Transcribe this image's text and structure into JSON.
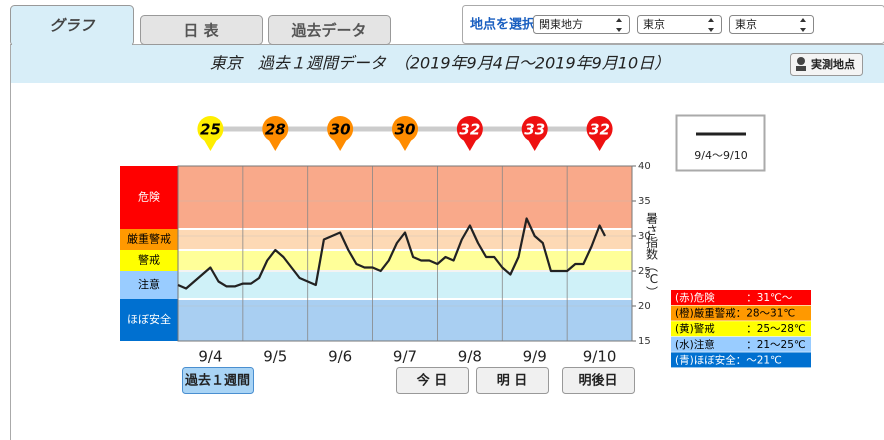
{
  "tabs": [
    "グラフ",
    "日 表",
    "過去データ"
  ],
  "selector": {
    "label": "地点を選択",
    "options": [
      "関東地方",
      "東京",
      "東京"
    ]
  },
  "header": {
    "title": "東京　過去１週間データ　（2019年9月4日～2019年9月10日）",
    "button": "実測地点"
  },
  "chart_data": {
    "type": "line",
    "y_label": "暑さ指数（℃）",
    "ylim": [
      15,
      40
    ],
    "yticks": [
      15,
      20,
      25,
      30,
      35,
      40
    ],
    "xlim": [
      0,
      168
    ],
    "categories": [
      "9/4",
      "9/5",
      "9/6",
      "9/7",
      "9/8",
      "9/9",
      "9/10"
    ],
    "series": [
      {
        "name": "9/4～9/10",
        "color": "#222222",
        "x": [
          0,
          3,
          6,
          9,
          12,
          15,
          18,
          21,
          24,
          27,
          30,
          33,
          36,
          39,
          42,
          45,
          48,
          51,
          54,
          57,
          60,
          63,
          66,
          69,
          72,
          75,
          78,
          81,
          84,
          87,
          90,
          93,
          96,
          99,
          102,
          105,
          108,
          111,
          114,
          117,
          120,
          123,
          126,
          129,
          132,
          135,
          138,
          141,
          144,
          147,
          150,
          153,
          156,
          158
        ],
        "values": [
          23.0,
          22.5,
          23.5,
          24.5,
          25.5,
          23.5,
          22.8,
          22.8,
          23.2,
          23.2,
          24.0,
          26.5,
          28.0,
          27.0,
          25.5,
          24.0,
          23.5,
          23.0,
          29.5,
          30.0,
          30.5,
          28.0,
          26.0,
          25.5,
          25.5,
          25.0,
          26.5,
          29.0,
          30.5,
          27.0,
          26.5,
          26.5,
          26.0,
          27.0,
          26.5,
          29.5,
          31.5,
          29.0,
          27.0,
          27.0,
          25.5,
          24.5,
          27.0,
          32.5,
          30.0,
          29.0,
          25.0,
          25.0,
          25.0,
          26.0,
          26.0,
          28.5,
          31.5,
          30.0
        ]
      }
    ],
    "daily_max": {
      "values": [
        25,
        28,
        30,
        30,
        32,
        33,
        32
      ],
      "colors": [
        "#ffee00",
        "#ff8c00",
        "#ff8c00",
        "#ff8c00",
        "#ee1111",
        "#ee1111",
        "#ee1111"
      ],
      "text_colors": [
        "#000000",
        "#000000",
        "#000000",
        "#000000",
        "#ffffff",
        "#ffffff",
        "#ffffff"
      ]
    },
    "zones": [
      {
        "name": "危険",
        "legend": "(赤)危険　　　：31℃～",
        "from": 31,
        "color": "#ff0000",
        "band": "#f9a98a",
        "text_color": "#ffffff"
      },
      {
        "name": "厳重警戒",
        "legend": "(橙)厳重警戒：28～31℃",
        "from": 28,
        "color": "#ff9900",
        "band": "#fdd9b5",
        "text_color": "#000000"
      },
      {
        "name": "警戒",
        "legend": "(黄)警戒　　　：25～28℃",
        "from": 25,
        "color": "#ffff00",
        "band": "#ffff99",
        "text_color": "#000000"
      },
      {
        "name": "注意",
        "legend": "(水)注意　　　：21～25℃",
        "from": 21,
        "color": "#99ccff",
        "band": "#cff1f8",
        "text_color": "#000000"
      },
      {
        "name": "ほぼ安全",
        "legend": "(青)ほぼ安全：～21℃",
        "from": 15,
        "color": "#0070d0",
        "band": "#a9cff2",
        "text_color": "#ffffff"
      }
    ]
  },
  "buttons": [
    "過去１週間",
    "今 日",
    "明 日",
    "明後日"
  ]
}
